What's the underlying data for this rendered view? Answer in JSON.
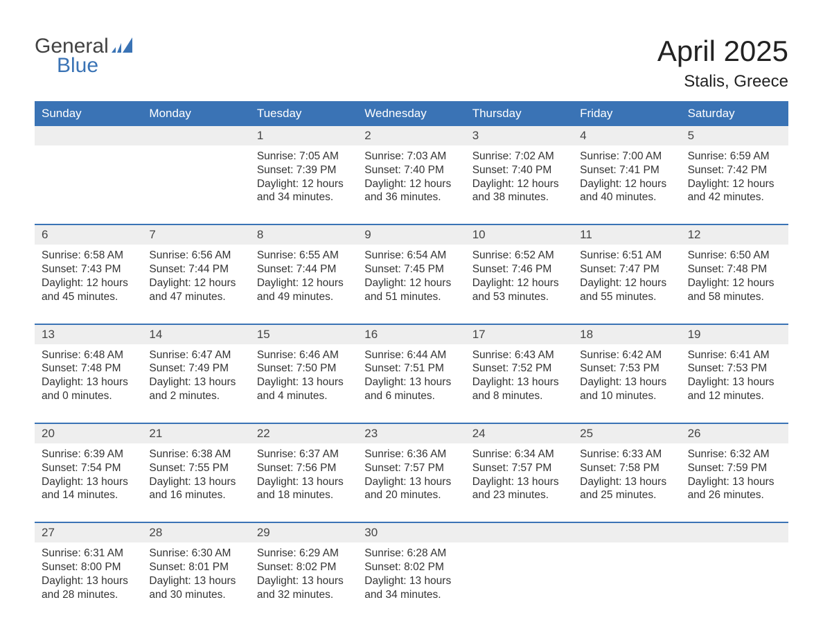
{
  "logo": {
    "text1": "General",
    "text2": "Blue"
  },
  "title": "April 2025",
  "location": "Stalis, Greece",
  "colors": {
    "header_bg": "#3a73b5",
    "header_text": "#ffffff",
    "date_row_bg": "#eeeeee",
    "rule": "#3a73b5",
    "body_text": "#333333",
    "logo_gray": "#424242",
    "logo_blue": "#3a73b5"
  },
  "typography": {
    "title_fontsize": 42,
    "location_fontsize": 24,
    "dayheader_fontsize": 17,
    "datenum_fontsize": 17,
    "body_fontsize": 15.5
  },
  "day_names": [
    "Sunday",
    "Monday",
    "Tuesday",
    "Wednesday",
    "Thursday",
    "Friday",
    "Saturday"
  ],
  "weeks": [
    [
      null,
      null,
      {
        "d": "1",
        "sr": "Sunrise: 7:05 AM",
        "ss": "Sunset: 7:39 PM",
        "dl1": "Daylight: 12 hours",
        "dl2": "and 34 minutes."
      },
      {
        "d": "2",
        "sr": "Sunrise: 7:03 AM",
        "ss": "Sunset: 7:40 PM",
        "dl1": "Daylight: 12 hours",
        "dl2": "and 36 minutes."
      },
      {
        "d": "3",
        "sr": "Sunrise: 7:02 AM",
        "ss": "Sunset: 7:40 PM",
        "dl1": "Daylight: 12 hours",
        "dl2": "and 38 minutes."
      },
      {
        "d": "4",
        "sr": "Sunrise: 7:00 AM",
        "ss": "Sunset: 7:41 PM",
        "dl1": "Daylight: 12 hours",
        "dl2": "and 40 minutes."
      },
      {
        "d": "5",
        "sr": "Sunrise: 6:59 AM",
        "ss": "Sunset: 7:42 PM",
        "dl1": "Daylight: 12 hours",
        "dl2": "and 42 minutes."
      }
    ],
    [
      {
        "d": "6",
        "sr": "Sunrise: 6:58 AM",
        "ss": "Sunset: 7:43 PM",
        "dl1": "Daylight: 12 hours",
        "dl2": "and 45 minutes."
      },
      {
        "d": "7",
        "sr": "Sunrise: 6:56 AM",
        "ss": "Sunset: 7:44 PM",
        "dl1": "Daylight: 12 hours",
        "dl2": "and 47 minutes."
      },
      {
        "d": "8",
        "sr": "Sunrise: 6:55 AM",
        "ss": "Sunset: 7:44 PM",
        "dl1": "Daylight: 12 hours",
        "dl2": "and 49 minutes."
      },
      {
        "d": "9",
        "sr": "Sunrise: 6:54 AM",
        "ss": "Sunset: 7:45 PM",
        "dl1": "Daylight: 12 hours",
        "dl2": "and 51 minutes."
      },
      {
        "d": "10",
        "sr": "Sunrise: 6:52 AM",
        "ss": "Sunset: 7:46 PM",
        "dl1": "Daylight: 12 hours",
        "dl2": "and 53 minutes."
      },
      {
        "d": "11",
        "sr": "Sunrise: 6:51 AM",
        "ss": "Sunset: 7:47 PM",
        "dl1": "Daylight: 12 hours",
        "dl2": "and 55 minutes."
      },
      {
        "d": "12",
        "sr": "Sunrise: 6:50 AM",
        "ss": "Sunset: 7:48 PM",
        "dl1": "Daylight: 12 hours",
        "dl2": "and 58 minutes."
      }
    ],
    [
      {
        "d": "13",
        "sr": "Sunrise: 6:48 AM",
        "ss": "Sunset: 7:48 PM",
        "dl1": "Daylight: 13 hours",
        "dl2": "and 0 minutes."
      },
      {
        "d": "14",
        "sr": "Sunrise: 6:47 AM",
        "ss": "Sunset: 7:49 PM",
        "dl1": "Daylight: 13 hours",
        "dl2": "and 2 minutes."
      },
      {
        "d": "15",
        "sr": "Sunrise: 6:46 AM",
        "ss": "Sunset: 7:50 PM",
        "dl1": "Daylight: 13 hours",
        "dl2": "and 4 minutes."
      },
      {
        "d": "16",
        "sr": "Sunrise: 6:44 AM",
        "ss": "Sunset: 7:51 PM",
        "dl1": "Daylight: 13 hours",
        "dl2": "and 6 minutes."
      },
      {
        "d": "17",
        "sr": "Sunrise: 6:43 AM",
        "ss": "Sunset: 7:52 PM",
        "dl1": "Daylight: 13 hours",
        "dl2": "and 8 minutes."
      },
      {
        "d": "18",
        "sr": "Sunrise: 6:42 AM",
        "ss": "Sunset: 7:53 PM",
        "dl1": "Daylight: 13 hours",
        "dl2": "and 10 minutes."
      },
      {
        "d": "19",
        "sr": "Sunrise: 6:41 AM",
        "ss": "Sunset: 7:53 PM",
        "dl1": "Daylight: 13 hours",
        "dl2": "and 12 minutes."
      }
    ],
    [
      {
        "d": "20",
        "sr": "Sunrise: 6:39 AM",
        "ss": "Sunset: 7:54 PM",
        "dl1": "Daylight: 13 hours",
        "dl2": "and 14 minutes."
      },
      {
        "d": "21",
        "sr": "Sunrise: 6:38 AM",
        "ss": "Sunset: 7:55 PM",
        "dl1": "Daylight: 13 hours",
        "dl2": "and 16 minutes."
      },
      {
        "d": "22",
        "sr": "Sunrise: 6:37 AM",
        "ss": "Sunset: 7:56 PM",
        "dl1": "Daylight: 13 hours",
        "dl2": "and 18 minutes."
      },
      {
        "d": "23",
        "sr": "Sunrise: 6:36 AM",
        "ss": "Sunset: 7:57 PM",
        "dl1": "Daylight: 13 hours",
        "dl2": "and 20 minutes."
      },
      {
        "d": "24",
        "sr": "Sunrise: 6:34 AM",
        "ss": "Sunset: 7:57 PM",
        "dl1": "Daylight: 13 hours",
        "dl2": "and 23 minutes."
      },
      {
        "d": "25",
        "sr": "Sunrise: 6:33 AM",
        "ss": "Sunset: 7:58 PM",
        "dl1": "Daylight: 13 hours",
        "dl2": "and 25 minutes."
      },
      {
        "d": "26",
        "sr": "Sunrise: 6:32 AM",
        "ss": "Sunset: 7:59 PM",
        "dl1": "Daylight: 13 hours",
        "dl2": "and 26 minutes."
      }
    ],
    [
      {
        "d": "27",
        "sr": "Sunrise: 6:31 AM",
        "ss": "Sunset: 8:00 PM",
        "dl1": "Daylight: 13 hours",
        "dl2": "and 28 minutes."
      },
      {
        "d": "28",
        "sr": "Sunrise: 6:30 AM",
        "ss": "Sunset: 8:01 PM",
        "dl1": "Daylight: 13 hours",
        "dl2": "and 30 minutes."
      },
      {
        "d": "29",
        "sr": "Sunrise: 6:29 AM",
        "ss": "Sunset: 8:02 PM",
        "dl1": "Daylight: 13 hours",
        "dl2": "and 32 minutes."
      },
      {
        "d": "30",
        "sr": "Sunrise: 6:28 AM",
        "ss": "Sunset: 8:02 PM",
        "dl1": "Daylight: 13 hours",
        "dl2": "and 34 minutes."
      },
      null,
      null,
      null
    ]
  ]
}
